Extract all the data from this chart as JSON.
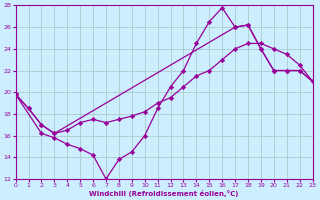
{
  "xlabel": "Windchill (Refroidissement éolien,°C)",
  "xlim": [
    0,
    23
  ],
  "ylim": [
    12,
    28
  ],
  "xticks": [
    0,
    1,
    2,
    3,
    4,
    5,
    6,
    7,
    8,
    9,
    10,
    11,
    12,
    13,
    14,
    15,
    16,
    17,
    18,
    19,
    20,
    21,
    22,
    23
  ],
  "yticks": [
    12,
    14,
    16,
    18,
    20,
    22,
    24,
    26,
    28
  ],
  "bg_color": "#cceeff",
  "grid_color": "#aacccc",
  "line_color": "#990099",
  "line1_x": [
    0,
    2,
    3,
    4,
    5,
    6,
    7,
    8,
    9,
    10,
    11,
    12,
    13,
    14,
    15,
    16,
    17,
    18,
    19,
    20,
    21,
    22,
    23
  ],
  "line1_y": [
    19.8,
    16.2,
    15.8,
    15.2,
    14.8,
    14.2,
    12.0,
    13.8,
    14.5,
    16.0,
    18.5,
    20.5,
    22.0,
    24.5,
    26.5,
    27.8,
    26.0,
    26.2,
    24.0,
    22.0,
    22.0,
    22.0,
    21.0
  ],
  "line2_x": [
    0,
    1,
    2,
    3,
    4,
    5,
    6,
    7,
    8,
    9,
    10,
    11,
    12,
    13,
    14,
    15,
    16,
    17,
    18,
    19,
    20,
    21,
    22,
    23
  ],
  "line2_y": [
    19.8,
    18.5,
    17.0,
    16.2,
    16.5,
    17.2,
    17.5,
    17.2,
    17.5,
    17.8,
    18.2,
    19.0,
    19.5,
    20.5,
    21.5,
    22.0,
    23.0,
    24.0,
    24.5,
    24.5,
    24.0,
    23.5,
    22.5,
    21.0
  ],
  "line3_x": [
    0,
    1,
    2,
    3,
    17,
    18,
    19,
    20,
    21,
    22,
    23
  ],
  "line3_y": [
    19.8,
    18.5,
    17.0,
    16.2,
    26.0,
    26.2,
    24.0,
    22.0,
    22.0,
    22.0,
    21.0
  ]
}
